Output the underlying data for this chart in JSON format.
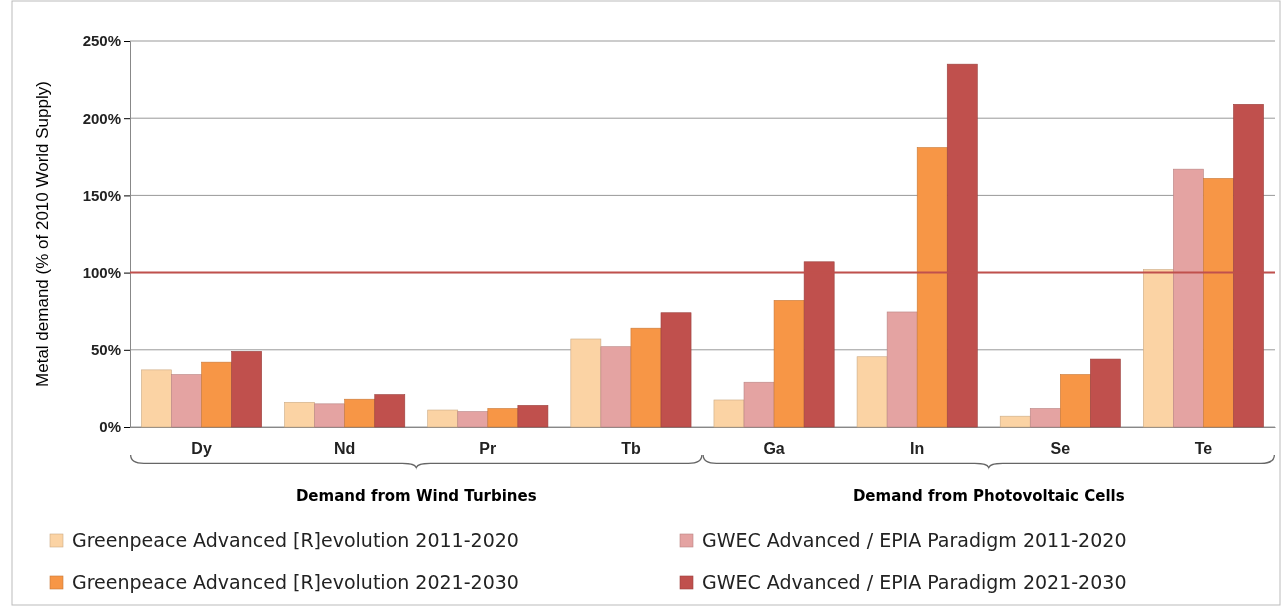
{
  "chart_data": {
    "type": "bar",
    "ylabel": "Metal demand (% of 2010 World Supply)",
    "categories": [
      "Dy",
      "Nd",
      "Pr",
      "Tb",
      "Ga",
      "In",
      "Se",
      "Te"
    ],
    "series": [
      {
        "name": "Greenpeace Advanced [R]evolution 2011-2020",
        "color": "#fbd3a4",
        "values": [
          37,
          16,
          11,
          57,
          17.5,
          45.5,
          7,
          102
        ]
      },
      {
        "name": "GWEC Advanced / EPIA Paradigm 2011-2020",
        "color": "#e4a3a2",
        "values": [
          34,
          15,
          10,
          52,
          29,
          74.5,
          12,
          167
        ]
      },
      {
        "name": "Greenpeace Advanced [R]evolution 2021-2030",
        "color": "#f79646",
        "values": [
          42,
          18,
          12,
          64,
          82,
          181,
          34,
          161
        ]
      },
      {
        "name": "GWEC Advanced / EPIA Paradigm 2021-2030",
        "color": "#c0504d",
        "values": [
          49,
          21,
          14,
          74,
          107,
          235,
          44,
          209
        ]
      }
    ],
    "ylim": [
      0,
      250
    ],
    "yticks": [
      {
        "value": 0,
        "label": "0%"
      },
      {
        "value": 50,
        "label": "50%"
      },
      {
        "value": 100,
        "label": "100%"
      },
      {
        "value": 150,
        "label": "150%"
      },
      {
        "value": 200,
        "label": "200%"
      },
      {
        "value": 250,
        "label": "250%"
      }
    ],
    "grid": "y",
    "legend": "bottom",
    "ref_lines": [
      {
        "axis": "y",
        "value": 100,
        "color": "#c0504d"
      }
    ],
    "annotations": [
      "Demand from Wind Turbines",
      "Demand from Photovoltaic Cells"
    ]
  }
}
